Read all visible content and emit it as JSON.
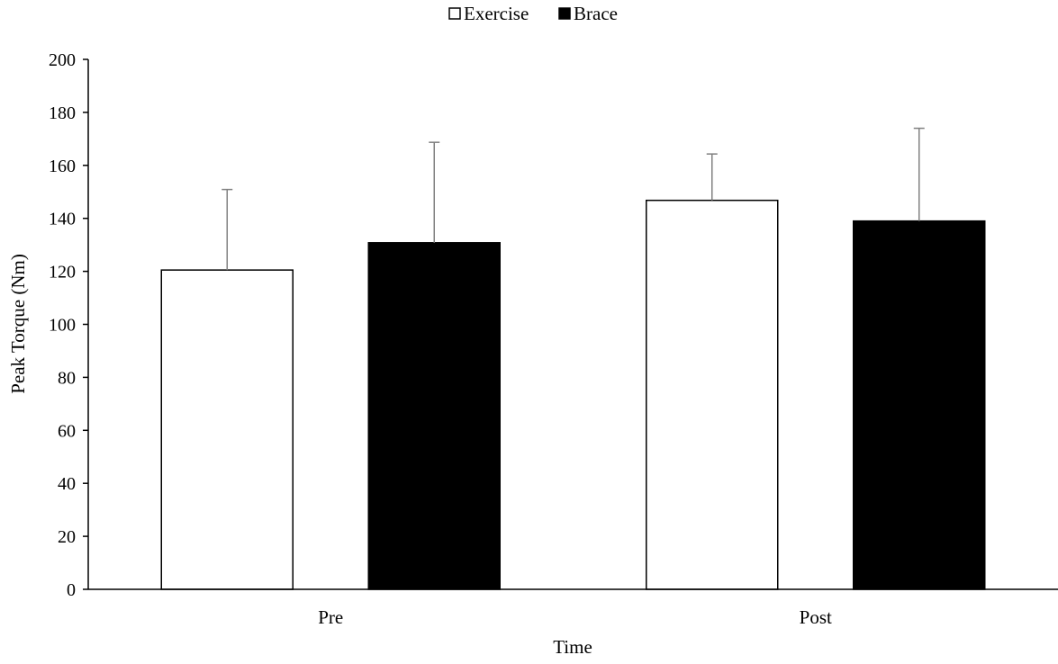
{
  "chart_data": {
    "type": "bar",
    "title": "",
    "xlabel": "Time",
    "ylabel": "Peak Torque (Nm)",
    "categories": [
      "Pre",
      "Post"
    ],
    "series": [
      {
        "name": "Exercise",
        "values": [
          120.5,
          146.8
        ],
        "error": [
          30.4,
          17.5
        ],
        "fill": "#ffffff",
        "stroke": "#000000"
      },
      {
        "name": "Brace",
        "values": [
          130.8,
          139.0
        ],
        "error": [
          37.9,
          35.0
        ],
        "fill": "#000000",
        "stroke": "#000000"
      }
    ],
    "ylim": [
      0,
      200
    ],
    "yticks": [
      0,
      20,
      40,
      60,
      80,
      100,
      120,
      140,
      160,
      180,
      200
    ],
    "legend": {
      "placement": "top-center",
      "entries": [
        "Exercise",
        "Brace"
      ]
    },
    "grid": false,
    "error_bar_color": "#808080"
  }
}
